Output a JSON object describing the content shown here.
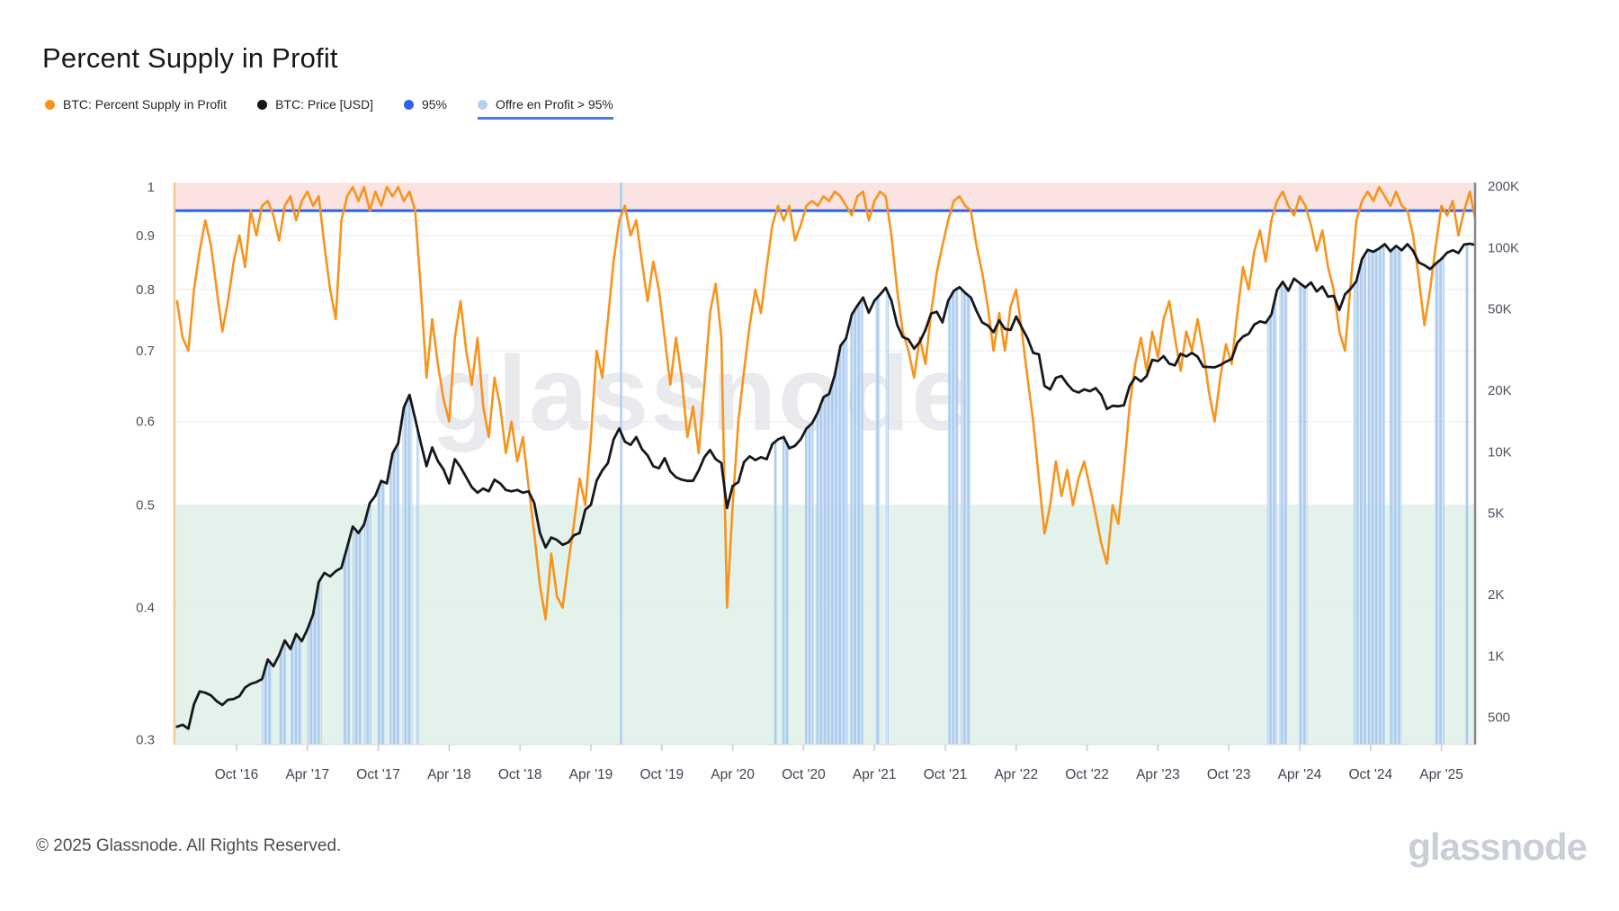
{
  "title": "Percent Supply in Profit",
  "watermark": "glassnode",
  "footer": {
    "copyright": "© 2025 Glassnode. All Rights Reserved.",
    "brand": "glassnode"
  },
  "legend": [
    {
      "label": "BTC: Percent Supply in Profit",
      "color": "#f7941d",
      "underlined": false
    },
    {
      "label": "BTC: Price [USD]",
      "color": "#17181c",
      "underlined": false
    },
    {
      "label": "95%",
      "color": "#2e63e7",
      "underlined": false
    },
    {
      "label": "Offre en Profit > 95%",
      "color": "#b7d0f1",
      "underlined": true
    }
  ],
  "chart_data": {
    "type": "line",
    "title": "Percent Supply in Profit",
    "grid": true,
    "legend_position": "top-left",
    "left_axis": {
      "scale": "log",
      "range": [
        0.3,
        1.0
      ],
      "tick_labels": [
        "1",
        "0.9",
        "0.8",
        "0.7",
        "0.6",
        "0.5",
        "0.4",
        "0.3"
      ],
      "tick_values": [
        1,
        0.9,
        0.8,
        0.7,
        0.6,
        0.5,
        0.4,
        0.3
      ]
    },
    "right_axis": {
      "scale": "log",
      "range": [
        400,
        210000
      ],
      "tick_labels": [
        "200K",
        "100K",
        "50K",
        "20K",
        "10K",
        "5K",
        "2K",
        "1K",
        "500"
      ],
      "tick_values": [
        200000,
        100000,
        50000,
        20000,
        10000,
        5000,
        2000,
        1000,
        500
      ]
    },
    "x_tick_labels": [
      "Oct '16",
      "Apr '17",
      "Oct '17",
      "Apr '18",
      "Oct '18",
      "Apr '19",
      "Oct '19",
      "Apr '20",
      "Oct '20",
      "Apr '21",
      "Oct '21",
      "Apr '22",
      "Oct '22",
      "Apr '23",
      "Oct '23",
      "Apr '24",
      "Oct '24",
      "Apr '25"
    ],
    "threshold": {
      "value": 0.95,
      "color": "#2e63e7"
    },
    "bands": {
      "red_zone": {
        "from": 0.95,
        "to": 1.0,
        "color": "#fae3e1"
      },
      "green_zone": {
        "from": 0.3,
        "to": 0.5,
        "color": "#e3f3ec"
      }
    },
    "t_start": 2016.33,
    "t_step": 0.04,
    "series": [
      {
        "name": "BTC: Percent Supply in Profit",
        "axis": "left",
        "color": "#f7941d",
        "values": [
          0.78,
          0.72,
          0.7,
          0.8,
          0.87,
          0.93,
          0.88,
          0.8,
          0.73,
          0.78,
          0.85,
          0.9,
          0.84,
          0.95,
          0.9,
          0.96,
          0.97,
          0.94,
          0.89,
          0.96,
          0.98,
          0.93,
          0.97,
          0.99,
          0.96,
          0.98,
          0.88,
          0.8,
          0.75,
          0.93,
          0.98,
          1.0,
          0.97,
          1.0,
          0.95,
          0.99,
          0.96,
          1.0,
          0.98,
          1.0,
          0.97,
          0.99,
          0.95,
          0.8,
          0.66,
          0.75,
          0.68,
          0.63,
          0.6,
          0.72,
          0.78,
          0.7,
          0.65,
          0.72,
          0.62,
          0.58,
          0.66,
          0.62,
          0.56,
          0.6,
          0.55,
          0.58,
          0.52,
          0.47,
          0.42,
          0.39,
          0.45,
          0.41,
          0.4,
          0.44,
          0.48,
          0.53,
          0.5,
          0.58,
          0.7,
          0.66,
          0.75,
          0.85,
          0.93,
          0.96,
          0.9,
          0.93,
          0.85,
          0.78,
          0.85,
          0.8,
          0.72,
          0.65,
          0.72,
          0.66,
          0.58,
          0.62,
          0.56,
          0.65,
          0.76,
          0.81,
          0.72,
          0.4,
          0.5,
          0.6,
          0.67,
          0.74,
          0.8,
          0.76,
          0.84,
          0.92,
          0.96,
          0.93,
          0.96,
          0.89,
          0.92,
          0.96,
          0.97,
          0.96,
          0.98,
          0.97,
          0.99,
          0.98,
          0.96,
          0.94,
          0.98,
          0.99,
          0.93,
          0.97,
          0.99,
          0.98,
          0.9,
          0.8,
          0.73,
          0.7,
          0.66,
          0.72,
          0.68,
          0.76,
          0.83,
          0.88,
          0.93,
          0.97,
          0.98,
          0.96,
          0.95,
          0.88,
          0.83,
          0.77,
          0.7,
          0.76,
          0.7,
          0.77,
          0.8,
          0.73,
          0.66,
          0.6,
          0.53,
          0.47,
          0.5,
          0.55,
          0.51,
          0.54,
          0.5,
          0.53,
          0.55,
          0.52,
          0.49,
          0.46,
          0.44,
          0.5,
          0.48,
          0.54,
          0.62,
          0.68,
          0.72,
          0.67,
          0.73,
          0.69,
          0.75,
          0.78,
          0.72,
          0.67,
          0.73,
          0.7,
          0.75,
          0.7,
          0.64,
          0.6,
          0.66,
          0.71,
          0.68,
          0.76,
          0.84,
          0.8,
          0.87,
          0.91,
          0.85,
          0.93,
          0.97,
          0.99,
          0.96,
          0.94,
          0.98,
          0.96,
          0.92,
          0.87,
          0.91,
          0.84,
          0.8,
          0.73,
          0.7,
          0.81,
          0.93,
          0.97,
          0.99,
          0.97,
          1.0,
          0.98,
          0.96,
          0.99,
          0.96,
          0.95,
          0.9,
          0.82,
          0.74,
          0.8,
          0.88,
          0.96,
          0.94,
          0.97,
          0.9,
          0.95,
          0.99,
          0.93
        ]
      },
      {
        "name": "BTC: Price [USD]",
        "axis": "right",
        "color": "#17181c",
        "values": [
          450,
          460,
          440,
          580,
          670,
          660,
          640,
          600,
          575,
          610,
          615,
          635,
          700,
          730,
          745,
          770,
          960,
          890,
          1010,
          1190,
          1080,
          1280,
          1180,
          1350,
          1600,
          2300,
          2550,
          2450,
          2600,
          2700,
          3400,
          4300,
          4000,
          4400,
          5600,
          6100,
          7200,
          7000,
          9800,
          11000,
          16500,
          19000,
          14500,
          11000,
          8500,
          10500,
          9000,
          8200,
          7000,
          9200,
          8400,
          7500,
          6700,
          6300,
          6600,
          6400,
          7300,
          7000,
          6500,
          6400,
          6500,
          6300,
          6400,
          5600,
          4000,
          3400,
          3800,
          3700,
          3500,
          3600,
          3900,
          4000,
          5200,
          5500,
          7200,
          8100,
          8800,
          11500,
          13000,
          11200,
          10800,
          11800,
          10300,
          9600,
          8500,
          8300,
          9300,
          8000,
          7500,
          7300,
          7200,
          7200,
          8100,
          9400,
          10200,
          9200,
          8800,
          5300,
          6800,
          7100,
          8900,
          9500,
          9100,
          9400,
          9200,
          10900,
          11500,
          11800,
          10400,
          10700,
          11500,
          13000,
          13800,
          15600,
          18500,
          19200,
          23800,
          33000,
          36000,
          47000,
          52000,
          57000,
          48000,
          55000,
          59000,
          63500,
          55000,
          42000,
          36500,
          35500,
          32000,
          34500,
          39500,
          47500,
          48500,
          43000,
          55000,
          61500,
          64000,
          60000,
          57000,
          49000,
          43000,
          41500,
          38500,
          44000,
          40000,
          39500,
          46000,
          40500,
          36000,
          30500,
          30000,
          21000,
          20200,
          23000,
          23500,
          21500,
          20000,
          19500,
          20200,
          19800,
          20500,
          19000,
          16200,
          16800,
          16700,
          16900,
          21000,
          23200,
          22100,
          23500,
          28200,
          27800,
          29400,
          27000,
          26500,
          30200,
          29300,
          30500,
          29200,
          26100,
          26000,
          25900,
          26600,
          27600,
          28500,
          34200,
          36700,
          37800,
          42000,
          43500,
          42800,
          47000,
          62000,
          68000,
          61500,
          70500,
          67000,
          63800,
          67500,
          61000,
          64500,
          57500,
          58000,
          49500,
          59000,
          63000,
          68500,
          88000,
          97500,
          95500,
          99000,
          104000,
          96000,
          102000,
          97000,
          104000,
          96500,
          84500,
          82000,
          78500,
          83500,
          88000,
          94500,
          97000,
          94000,
          103500,
          104500,
          103000
        ]
      }
    ],
    "profit_gt95_intervals": [
      {
        "from": 2016.93,
        "to": 2017.0,
        "mode": "price"
      },
      {
        "from": 2017.05,
        "to": 2017.1,
        "mode": "price"
      },
      {
        "from": 2017.13,
        "to": 2017.21,
        "mode": "price"
      },
      {
        "from": 2017.25,
        "to": 2017.35,
        "mode": "price"
      },
      {
        "from": 2017.5,
        "to": 2017.55,
        "mode": "price"
      },
      {
        "from": 2017.57,
        "to": 2017.63,
        "mode": "price"
      },
      {
        "from": 2017.65,
        "to": 2017.7,
        "mode": "price"
      },
      {
        "from": 2017.74,
        "to": 2017.8,
        "mode": "price"
      },
      {
        "from": 2017.83,
        "to": 2017.9,
        "mode": "price"
      },
      {
        "from": 2017.92,
        "to": 2017.99,
        "mode": "price"
      },
      {
        "from": 2018.02,
        "to": 2018.04,
        "mode": "price"
      },
      {
        "from": 2019.455,
        "to": 2019.475,
        "mode": "full"
      },
      {
        "from": 2020.54,
        "to": 2020.56,
        "mode": "price"
      },
      {
        "from": 2020.6,
        "to": 2020.645,
        "mode": "price"
      },
      {
        "from": 2020.76,
        "to": 2020.82,
        "mode": "price"
      },
      {
        "from": 2020.84,
        "to": 2021.06,
        "mode": "price"
      },
      {
        "from": 2021.08,
        "to": 2021.17,
        "mode": "price"
      },
      {
        "from": 2021.255,
        "to": 2021.29,
        "mode": "price"
      },
      {
        "from": 2021.33,
        "to": 2021.35,
        "mode": "price"
      },
      {
        "from": 2021.77,
        "to": 2021.84,
        "mode": "price"
      },
      {
        "from": 2021.86,
        "to": 2021.93,
        "mode": "price"
      },
      {
        "from": 2024.02,
        "to": 2024.09,
        "mode": "price"
      },
      {
        "from": 2024.105,
        "to": 2024.165,
        "mode": "price"
      },
      {
        "from": 2024.24,
        "to": 2024.305,
        "mode": "price"
      },
      {
        "from": 2024.63,
        "to": 2024.72,
        "mode": "price"
      },
      {
        "from": 2024.73,
        "to": 2024.85,
        "mode": "price"
      },
      {
        "from": 2024.88,
        "to": 2024.97,
        "mode": "price"
      },
      {
        "from": 2025.2,
        "to": 2025.27,
        "mode": "price"
      },
      {
        "from": 2025.42,
        "to": 2025.44,
        "mode": "price"
      }
    ]
  }
}
